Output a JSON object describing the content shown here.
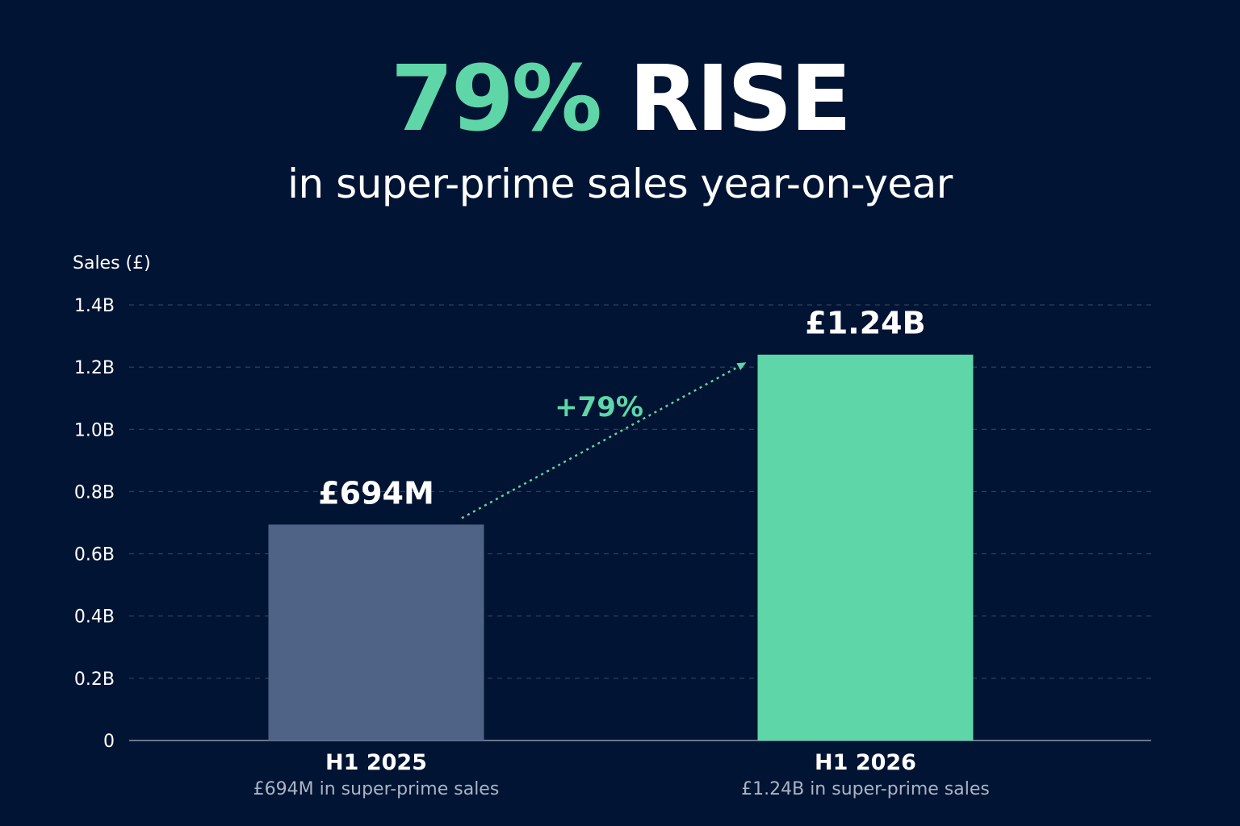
{
  "headline": {
    "percent": "79%",
    "word": "RISE",
    "subtitle": "in super-prime sales year-on-year"
  },
  "colors": {
    "background": "#021433",
    "accent": "#5ed6a7",
    "bar_previous": "#4f6386",
    "grid": "#3a4a66"
  },
  "chart_data": {
    "type": "bar",
    "ylabel": "Sales (£)",
    "ylim": [
      0,
      1.4
    ],
    "yticks": [
      {
        "value": 0,
        "label": "0"
      },
      {
        "value": 0.2,
        "label": "0.2B"
      },
      {
        "value": 0.4,
        "label": "0.4B"
      },
      {
        "value": 0.6,
        "label": "0.6B"
      },
      {
        "value": 0.8,
        "label": "0.8B"
      },
      {
        "value": 1.0,
        "label": "1.0B"
      },
      {
        "value": 1.2,
        "label": "1.2B"
      },
      {
        "value": 1.4,
        "label": "1.4B"
      }
    ],
    "grid": true,
    "bars": [
      {
        "category": "H1 2025",
        "value": 0.694,
        "value_label": "£694M",
        "sublabel": "£694M in super-prime sales",
        "color": "#4f6386"
      },
      {
        "category": "H1 2026",
        "value": 1.24,
        "value_label": "£1.24B",
        "sublabel": "£1.24B in super-prime sales",
        "color": "#5ed6a7"
      }
    ],
    "annotation": {
      "text": "+79%"
    }
  }
}
